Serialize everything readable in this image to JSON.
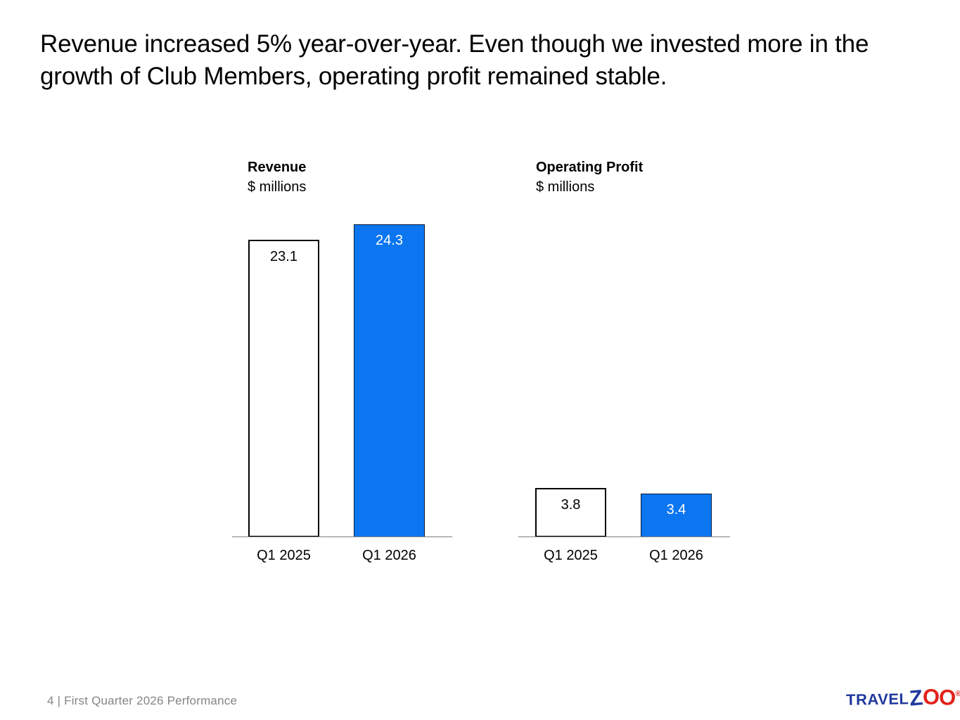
{
  "page": {
    "title": "Revenue increased 5% year-over-year. Even though we invested more in the growth of Club Members, operating profit remained stable.",
    "footer": "4 | First Quarter 2026 Performance"
  },
  "logo": {
    "travel": "TRAVEL",
    "z": "Z",
    "oo": "OO",
    "reg": "®",
    "blue": "#21399e",
    "red": "#e2231a"
  },
  "chart_data": [
    {
      "type": "bar",
      "title": "Revenue",
      "subtitle": "$ millions",
      "categories": [
        "Q1 2025",
        "Q1 2026"
      ],
      "values": [
        23.1,
        24.3
      ],
      "bar_fills": [
        "#ffffff",
        "#0b76f0"
      ],
      "bar_label_colors": [
        "#000000",
        "#ffffff"
      ],
      "ylim": [
        0,
        26
      ],
      "grid": false,
      "legend": false,
      "value_labels": "inside-top",
      "axis_color": "#7f7f7f"
    },
    {
      "type": "bar",
      "title": "Operating Profit",
      "subtitle": "$ millions",
      "categories": [
        "Q1 2025",
        "Q1 2026"
      ],
      "values": [
        3.8,
        3.4
      ],
      "bar_fills": [
        "#ffffff",
        "#0b76f0"
      ],
      "bar_label_colors": [
        "#000000",
        "#ffffff"
      ],
      "ylim": [
        0,
        26
      ],
      "grid": false,
      "legend": false,
      "value_labels": "inside-top",
      "axis_color": "#7f7f7f"
    }
  ]
}
